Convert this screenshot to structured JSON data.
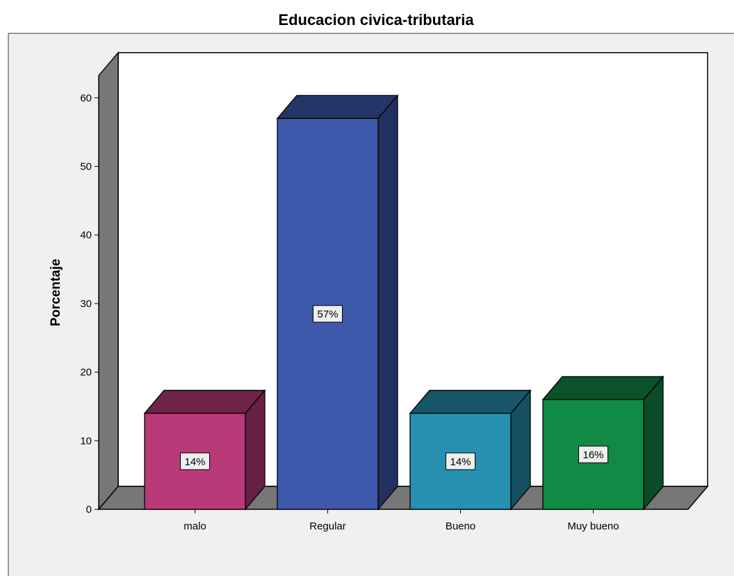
{
  "chart_data": {
    "type": "bar",
    "title": "Educacion civica-tributaria",
    "ylabel": "Porcentaje",
    "xlabel": "",
    "ylim": [
      0,
      60
    ],
    "yticks": [
      0,
      10,
      20,
      30,
      40,
      50,
      60
    ],
    "grid": false,
    "categories": [
      "malo",
      "Regular",
      "Bueno",
      "Muy bueno"
    ],
    "values": [
      14,
      57,
      14,
      16
    ],
    "data_labels": [
      "14%",
      "57%",
      "14%",
      "16%"
    ],
    "colors": [
      "#B83A78",
      "#3E58AC",
      "#2690B0",
      "#118A45"
    ]
  }
}
